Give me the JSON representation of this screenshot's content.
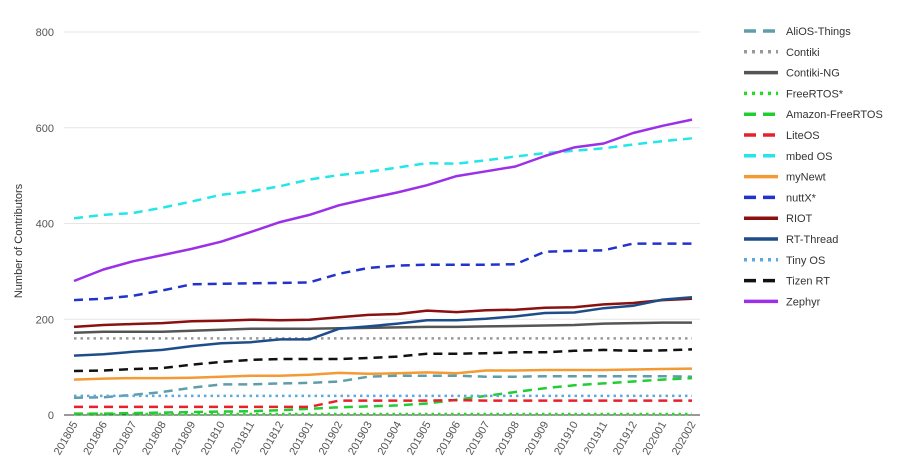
{
  "chart_data": {
    "type": "line",
    "title": "",
    "xlabel": "",
    "ylabel": "Number of Contributors",
    "ylim": [
      0,
      800
    ],
    "yticks": [
      "0",
      "200",
      "400",
      "600",
      "800"
    ],
    "grid": true,
    "legend_position": "right",
    "categories": [
      "201805",
      "201806",
      "201807",
      "201808",
      "201809",
      "201810",
      "201811",
      "201812",
      "201901",
      "201902",
      "201903",
      "201904",
      "201905",
      "201906",
      "201907",
      "201908",
      "201909",
      "201910",
      "201911",
      "201912",
      "202001",
      "202002"
    ],
    "series": [
      {
        "name": "AliOS-Things",
        "color": "#5f9ea8",
        "dash": "long-dash",
        "values": [
          36,
          37,
          42,
          48,
          57,
          64,
          64,
          66,
          67,
          70,
          80,
          82,
          82,
          82,
          80,
          80,
          81,
          81,
          81,
          81,
          81,
          80
        ]
      },
      {
        "name": "Contiki",
        "color": "#999999",
        "dash": "dot",
        "values": [
          160,
          160,
          160,
          160,
          160,
          160,
          160,
          160,
          160,
          160,
          160,
          160,
          160,
          160,
          160,
          160,
          160,
          160,
          160,
          160,
          160,
          160
        ]
      },
      {
        "name": "Contiki-NG",
        "color": "#555555",
        "dash": "solid",
        "values": [
          172,
          174,
          174,
          174,
          176,
          178,
          180,
          180,
          180,
          181,
          182,
          183,
          184,
          184,
          185,
          186,
          187,
          188,
          191,
          192,
          193,
          193
        ]
      },
      {
        "name": "FreeRTOS*",
        "color": "#22dd22",
        "dash": "dot",
        "values": [
          2,
          2,
          2,
          2,
          2,
          2,
          2,
          2,
          2,
          2,
          2,
          2,
          2,
          2,
          2,
          2,
          2,
          2,
          2,
          2,
          2,
          2
        ]
      },
      {
        "name": "Amazon-FreeRTOS",
        "color": "#22cc33",
        "dash": "long-dash",
        "values": [
          3,
          3,
          4,
          5,
          6,
          7,
          8,
          10,
          13,
          16,
          18,
          20,
          24,
          32,
          40,
          48,
          56,
          62,
          66,
          70,
          74,
          77
        ]
      },
      {
        "name": "LiteOS",
        "color": "#e8202a",
        "dash": "long-dash",
        "values": [
          17,
          17,
          17,
          17,
          17,
          17,
          17,
          17,
          17,
          30,
          30,
          30,
          30,
          31,
          30,
          30,
          30,
          30,
          30,
          30,
          30,
          30
        ]
      },
      {
        "name": "mbed OS",
        "color": "#22e6ea",
        "dash": "long-dash",
        "values": [
          411,
          418,
          422,
          433,
          446,
          460,
          467,
          478,
          492,
          501,
          508,
          517,
          526,
          525,
          532,
          540,
          547,
          552,
          557,
          565,
          572,
          578
        ]
      },
      {
        "name": "myNewt",
        "color": "#f39a34",
        "dash": "solid",
        "values": [
          74,
          76,
          77,
          77,
          78,
          80,
          82,
          82,
          84,
          88,
          86,
          87,
          89,
          87,
          93,
          93,
          94,
          94,
          94,
          95,
          96,
          97
        ]
      },
      {
        "name": "nuttX*",
        "color": "#2233cc",
        "dash": "long-dash",
        "values": [
          240,
          243,
          249,
          260,
          273,
          274,
          275,
          276,
          277,
          295,
          307,
          312,
          314,
          314,
          314,
          315,
          341,
          343,
          344,
          358,
          358,
          358
        ]
      },
      {
        "name": "RIOT",
        "color": "#8b1010",
        "dash": "solid",
        "values": [
          184,
          188,
          190,
          192,
          196,
          197,
          199,
          198,
          199,
          204,
          209,
          211,
          218,
          215,
          219,
          220,
          224,
          225,
          231,
          234,
          240,
          243
        ]
      },
      {
        "name": "RT-Thread",
        "color": "#1e4e8a",
        "dash": "solid",
        "values": [
          124,
          127,
          132,
          136,
          144,
          150,
          152,
          158,
          158,
          180,
          185,
          191,
          198,
          198,
          201,
          206,
          213,
          214,
          223,
          228,
          241,
          246
        ]
      },
      {
        "name": "Tiny OS",
        "color": "#5aa9e0",
        "dash": "dot",
        "values": [
          40,
          40,
          40,
          40,
          40,
          40,
          40,
          40,
          40,
          40,
          40,
          40,
          40,
          40,
          40,
          40,
          40,
          40,
          40,
          40,
          40,
          40
        ]
      },
      {
        "name": "Tizen RT",
        "color": "#111111",
        "dash": "long-dash",
        "values": [
          92,
          93,
          96,
          98,
          105,
          111,
          115,
          117,
          117,
          117,
          119,
          122,
          128,
          128,
          129,
          131,
          131,
          134,
          136,
          134,
          135,
          137
        ]
      },
      {
        "name": "Zephyr",
        "color": "#9b30e8",
        "dash": "solid",
        "values": [
          280,
          304,
          321,
          334,
          347,
          362,
          382,
          403,
          418,
          438,
          452,
          465,
          480,
          499,
          509,
          519,
          541,
          559,
          567,
          589,
          604,
          617
        ]
      }
    ]
  }
}
